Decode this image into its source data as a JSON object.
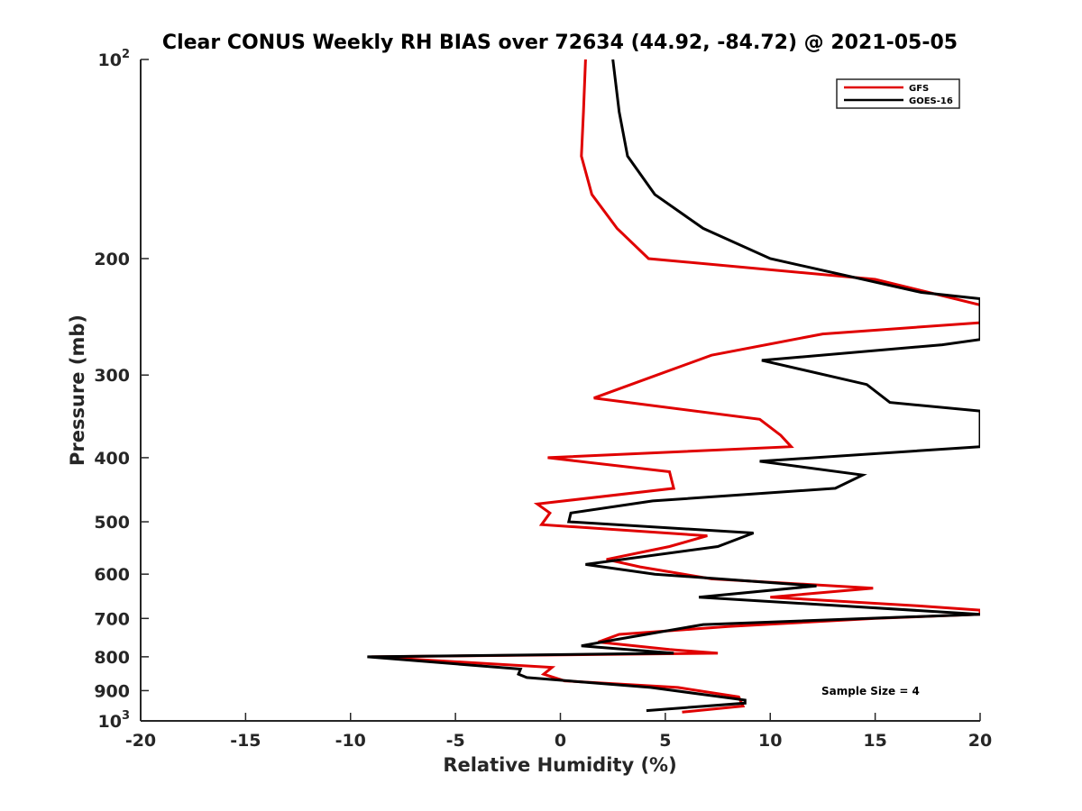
{
  "chart_data": {
    "type": "line",
    "title": "Clear CONUS Weekly RH BIAS over 72634 (44.92, -84.72) @ 2021-05-05",
    "xlabel": "Relative Humidity (%)",
    "ylabel": "Pressure (mb)",
    "xlim": [
      -20,
      20
    ],
    "ylim": [
      100,
      1000
    ],
    "yscale": "log",
    "y_reversed": true,
    "x_ticks": [
      "-20",
      "-15",
      "-10",
      "-5",
      "0",
      "5",
      "10",
      "15",
      "20"
    ],
    "x_tick_values": [
      -20,
      -15,
      -10,
      -5,
      0,
      5,
      10,
      15,
      20
    ],
    "y_ticks": [
      {
        "value": 100,
        "base": "10",
        "exp": "2"
      },
      {
        "value": 200,
        "base": "200",
        "exp": ""
      },
      {
        "value": 300,
        "base": "300",
        "exp": ""
      },
      {
        "value": 400,
        "base": "400",
        "exp": ""
      },
      {
        "value": 500,
        "base": "500",
        "exp": ""
      },
      {
        "value": 600,
        "base": "600",
        "exp": ""
      },
      {
        "value": 700,
        "base": "700",
        "exp": ""
      },
      {
        "value": 800,
        "base": "800",
        "exp": ""
      },
      {
        "value": 900,
        "base": "900",
        "exp": ""
      },
      {
        "value": 1000,
        "base": "10",
        "exp": "3"
      }
    ],
    "legend_position": "top-right",
    "annotation": "Sample Size = 4",
    "series": [
      {
        "name": "GFS",
        "color": "#e00000",
        "points": [
          [
            1.2,
            100
          ],
          [
            1.1,
            120
          ],
          [
            1.0,
            140
          ],
          [
            1.5,
            160
          ],
          [
            2.7,
            180
          ],
          [
            4.2,
            200
          ],
          [
            15.0,
            215
          ],
          [
            20,
            235
          ],
          [
            20,
            250
          ],
          [
            12.5,
            260
          ],
          [
            7.2,
            280
          ],
          [
            4.6,
            300
          ],
          [
            1.6,
            325
          ],
          [
            9.5,
            350
          ],
          [
            10.5,
            370
          ],
          [
            11.0,
            385
          ],
          [
            -0.6,
            400
          ],
          [
            5.2,
            420
          ],
          [
            5.4,
            445
          ],
          [
            -1.1,
            470
          ],
          [
            -0.5,
            485
          ],
          [
            -0.9,
            505
          ],
          [
            7.0,
            525
          ],
          [
            5.2,
            545
          ],
          [
            2.2,
            570
          ],
          [
            3.8,
            585
          ],
          [
            7.2,
            610
          ],
          [
            14.9,
            630
          ],
          [
            10.0,
            650
          ],
          [
            17.0,
            670
          ],
          [
            20,
            680
          ],
          [
            20,
            690
          ],
          [
            15.0,
            700
          ],
          [
            8.0,
            720
          ],
          [
            2.8,
            740
          ],
          [
            1.8,
            760
          ],
          [
            5.2,
            780
          ],
          [
            7.5,
            790
          ],
          [
            -9.0,
            800
          ],
          [
            -0.4,
            830
          ],
          [
            -0.8,
            850
          ],
          [
            0.2,
            870
          ],
          [
            5.6,
            890
          ],
          [
            8.5,
            920
          ],
          [
            8.7,
            950
          ],
          [
            5.8,
            970
          ]
        ]
      },
      {
        "name": "GOES-16",
        "color": "#000000",
        "points": [
          [
            2.5,
            100
          ],
          [
            2.8,
            120
          ],
          [
            3.2,
            140
          ],
          [
            4.5,
            160
          ],
          [
            6.8,
            180
          ],
          [
            10.0,
            200
          ],
          [
            17.2,
            225
          ],
          [
            20,
            230
          ],
          [
            20,
            265
          ],
          [
            18.2,
            270
          ],
          [
            9.6,
            285
          ],
          [
            14.6,
            310
          ],
          [
            15.7,
            330
          ],
          [
            20,
            340
          ],
          [
            20,
            385
          ],
          [
            9.5,
            405
          ],
          [
            14.4,
            425
          ],
          [
            13.1,
            445
          ],
          [
            4.4,
            465
          ],
          [
            0.5,
            485
          ],
          [
            0.4,
            500
          ],
          [
            9.2,
            520
          ],
          [
            7.5,
            545
          ],
          [
            1.2,
            580
          ],
          [
            4.5,
            600
          ],
          [
            12.2,
            625
          ],
          [
            6.6,
            650
          ],
          [
            20,
            690
          ],
          [
            6.8,
            715
          ],
          [
            2.5,
            755
          ],
          [
            1.0,
            770
          ],
          [
            5.4,
            790
          ],
          [
            -9.2,
            800
          ],
          [
            -1.9,
            835
          ],
          [
            -2.0,
            850
          ],
          [
            -1.6,
            860
          ],
          [
            4.3,
            890
          ],
          [
            8.8,
            930
          ],
          [
            8.8,
            940
          ],
          [
            4.1,
            965
          ]
        ]
      }
    ]
  }
}
